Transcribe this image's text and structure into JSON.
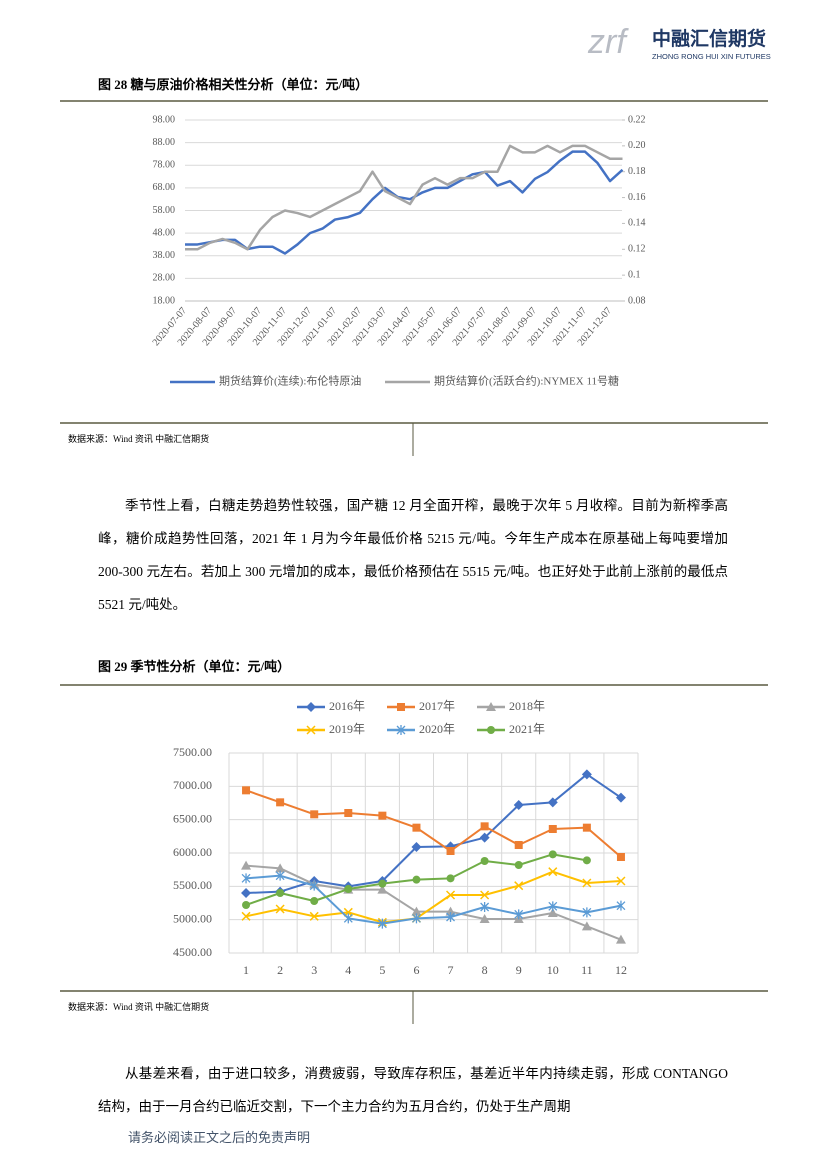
{
  "header": {
    "logo_mark": "zrf",
    "company": "中融汇信期货",
    "company_en": "ZHONG RONG HUI XIN FUTURES"
  },
  "figure28": {
    "title": "图 28 糖与原油价格相关性分析（单位：元/吨）",
    "source": "数据来源：Wind 资讯 中融汇信期货"
  },
  "paragraph1": "季节性上看，白糖走势趋势性较强，国产糖 12 月全面开榨，最晚于次年 5 月收榨。目前为新榨季高峰，糖价成趋势性回落，2021 年 1 月为今年最低价格 5215 元/吨。今年生产成本在原基础上每吨要增加 200-300 元左右。若加上 300 元增加的成本，最低价格预估在 5515 元/吨。也正好处于此前上涨前的最低点 5521 元/吨处。",
  "figure29": {
    "title": "图 29 季节性分析（单位：元/吨）",
    "source": "数据来源：Wind 资讯 中融汇信期货"
  },
  "paragraph2": "从基差来看，由于进口较多，消费疲弱，导致库存积压，基差近半年内持续走弱，形成 CONTANGO 结构，由于一月合约已临近交割，下一个主力合约为五月合约，仍处于生产周期",
  "footer": "请务必阅读正文之后的免责声明",
  "chart_data": [
    {
      "type": "line",
      "categories": [
        "2020-07-07",
        null,
        "2020-08-07",
        null,
        "2020-09-07",
        null,
        "2020-10-07",
        null,
        "2020-11-07",
        null,
        "2020-12-07",
        null,
        "2021-01-07",
        null,
        "2021-02-07",
        null,
        "2021-03-07",
        null,
        "2021-04-07",
        null,
        "2021-05-07",
        null,
        "2021-06-07",
        null,
        "2021-07-07",
        null,
        "2021-08-07",
        null,
        "2021-09-07",
        null,
        "2021-10-07",
        null,
        "2021-11-07",
        null,
        "2021-12-07",
        null
      ],
      "series": [
        {
          "name": "期货结算价(连续):布伦特原油",
          "color": "#4472c4",
          "axis": "y",
          "values": [
            43,
            43,
            44,
            45,
            45,
            41,
            42,
            42,
            39,
            43,
            48,
            50,
            54,
            55,
            57,
            63,
            68,
            64,
            63,
            66,
            68,
            68,
            71,
            74,
            75,
            69,
            71,
            66,
            72,
            75,
            80,
            84,
            84,
            79,
            71,
            76
          ]
        },
        {
          "name": "期货结算价(活跃合约):NYMEX 11号糖",
          "color": "#a5a5a5",
          "axis": "y2",
          "values": [
            0.12,
            0.12,
            0.125,
            0.128,
            0.125,
            0.12,
            0.135,
            0.145,
            0.15,
            0.148,
            0.145,
            0.15,
            0.155,
            0.16,
            0.165,
            0.18,
            0.165,
            0.16,
            0.155,
            0.17,
            0.175,
            0.17,
            0.175,
            0.175,
            0.18,
            0.18,
            0.2,
            0.195,
            0.195,
            0.2,
            0.195,
            0.2,
            0.2,
            0.195,
            0.19,
            0.19
          ]
        }
      ],
      "ylim": [
        18,
        98
      ],
      "yticks": [
        {
          "value": 18,
          "label": "18.00"
        },
        {
          "value": 28,
          "label": "28.00"
        },
        {
          "value": 38,
          "label": "38.00"
        },
        {
          "value": 48,
          "label": "48.00"
        },
        {
          "value": 58,
          "label": "58.00"
        },
        {
          "value": 68,
          "label": "68.00"
        },
        {
          "value": 78,
          "label": "78.00"
        },
        {
          "value": 88,
          "label": "88.00"
        },
        {
          "value": 98,
          "label": "98.00"
        }
      ],
      "y2lim": [
        0.08,
        0.22
      ],
      "y2ticks": [
        {
          "value": 0.08,
          "label": "0.08"
        },
        0.1,
        {
          "value": 0.12,
          "label": "0.12"
        },
        {
          "value": 0.14,
          "label": "0.14"
        },
        {
          "value": 0.16,
          "label": "0.16"
        },
        {
          "value": 0.18,
          "label": "0.18"
        },
        {
          "value": 0.2,
          "label": "0.20"
        },
        {
          "value": 0.22,
          "label": "0.22"
        }
      ],
      "grid": true,
      "legend": "bottom"
    },
    {
      "type": "line",
      "categories": [
        "1",
        "2",
        "3",
        "4",
        "5",
        "6",
        "7",
        "8",
        "9",
        "10",
        "11",
        "12"
      ],
      "series": [
        {
          "name": "2016年",
          "color": "#4472c4",
          "marker": "diamond",
          "values": [
            5400,
            5420,
            5580,
            5500,
            5580,
            6090,
            6100,
            6230,
            6720,
            6760,
            7180,
            6830
          ]
        },
        {
          "name": "2017年",
          "color": "#ed7d31",
          "marker": "square",
          "values": [
            6940,
            6760,
            6580,
            6600,
            6560,
            6380,
            6030,
            6400,
            6120,
            6360,
            6380,
            5940
          ]
        },
        {
          "name": "2018年",
          "color": "#a5a5a5",
          "marker": "triangle",
          "values": [
            5810,
            5770,
            5530,
            5450,
            5450,
            5120,
            5120,
            5010,
            5010,
            5100,
            4900,
            4700
          ]
        },
        {
          "name": "2019年",
          "color": "#ffc000",
          "marker": "x",
          "values": [
            5050,
            5160,
            5050,
            5110,
            4960,
            5020,
            5370,
            5370,
            5510,
            5720,
            5550,
            5580
          ]
        },
        {
          "name": "2020年",
          "color": "#5b9bd5",
          "marker": "star",
          "values": [
            5620,
            5660,
            5510,
            5020,
            4940,
            5020,
            5040,
            5190,
            5080,
            5200,
            5110,
            5210
          ]
        },
        {
          "name": "2021年",
          "color": "#70ad47",
          "marker": "circle",
          "values": [
            5220,
            5400,
            5280,
            5460,
            5540,
            5600,
            5620,
            5880,
            5820,
            5980,
            5890,
            null
          ]
        }
      ],
      "ylim": [
        4500,
        7500
      ],
      "yticks": [
        {
          "value": 4500,
          "label": "4500.00"
        },
        {
          "value": 5000,
          "label": "5000.00"
        },
        {
          "value": 5500,
          "label": "5500.00"
        },
        {
          "value": 6000,
          "label": "6000.00"
        },
        {
          "value": 6500,
          "label": "6500.00"
        },
        {
          "value": 7000,
          "label": "7000.00"
        },
        {
          "value": 7500,
          "label": "7500.00"
        }
      ],
      "grid": true,
      "legend": "top"
    }
  ]
}
